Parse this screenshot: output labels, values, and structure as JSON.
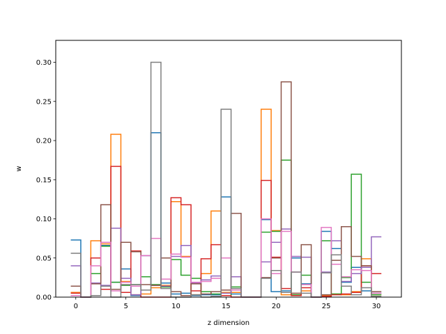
{
  "chart_data": {
    "type": "histogram-step",
    "title": "",
    "xlabel": "z dimension",
    "ylabel": "w",
    "xlim": [
      -2,
      32.5
    ],
    "ylim": [
      0,
      0.328
    ],
    "bin_start": -0.5,
    "bin_width": 1,
    "xticks": [
      0,
      5,
      10,
      15,
      20,
      25,
      30
    ],
    "xtick_labels": [
      "0",
      "5",
      "10",
      "15",
      "20",
      "25",
      "30"
    ],
    "yticks": [
      0.0,
      0.05,
      0.1,
      0.15,
      0.2,
      0.25,
      0.3
    ],
    "ytick_labels": [
      "0.00",
      "0.05",
      "0.10",
      "0.15",
      "0.20",
      "0.25",
      "0.30"
    ],
    "series": [
      {
        "color": "#1f77b4",
        "values": [
          0.073,
          0.0,
          0.05,
          0.066,
          0.019,
          0.036,
          0.002,
          0.053,
          0.21,
          0.018,
          0.004,
          0.005,
          0.002,
          0.003,
          0.003,
          0.128,
          0.004,
          0,
          0,
          0.099,
          0.007,
          0.008,
          0.05,
          0.017,
          0,
          0.084,
          0.062,
          0.019,
          0.038,
          0.008,
          0.005
        ]
      },
      {
        "color": "#ff7f0e",
        "values": [
          0.006,
          0.0,
          0.072,
          0.068,
          0.208,
          0.02,
          0.003,
          0.004,
          0.012,
          0.015,
          0.122,
          0.052,
          0.003,
          0.03,
          0.11,
          0.006,
          0.006,
          0,
          0,
          0.24,
          0.085,
          0.003,
          0.003,
          0.008,
          0,
          0.002,
          0.004,
          0.003,
          0.007,
          0.049,
          0.003
        ]
      },
      {
        "color": "#2ca02c",
        "values": [
          0.002,
          0.0,
          0.03,
          0.065,
          0.019,
          0.015,
          0.016,
          0.026,
          0.016,
          0.013,
          0.048,
          0.028,
          0.024,
          0.007,
          0.004,
          0.002,
          0.013,
          0,
          0,
          0.083,
          0.084,
          0.175,
          0.003,
          0.028,
          0,
          0.072,
          0.004,
          0.025,
          0.157,
          0.019,
          0.003
        ]
      },
      {
        "color": "#d62728",
        "values": [
          0.005,
          0.0,
          0.05,
          0.01,
          0.167,
          0.006,
          0.059,
          0.0,
          0.0,
          0.0,
          0.127,
          0.118,
          0.008,
          0.049,
          0.067,
          0.002,
          0.0,
          0,
          0,
          0.149,
          0.051,
          0.011,
          0.002,
          0.012,
          0,
          0.001,
          0.003,
          0.004,
          0.006,
          0.04,
          0.03
        ]
      },
      {
        "color": "#9467bd",
        "values": [
          0.04,
          0.0,
          0.018,
          0.015,
          0.088,
          0.024,
          0.003,
          0.053,
          0.015,
          0.014,
          0.052,
          0.066,
          0.018,
          0.022,
          0.027,
          0.005,
          0.026,
          0,
          0,
          0.045,
          0.07,
          0.087,
          0.052,
          0.051,
          0,
          0.032,
          0.072,
          0.02,
          0.03,
          0.038,
          0.077
        ]
      },
      {
        "color": "#8c564b",
        "values": [
          0.014,
          0.0,
          0.017,
          0.118,
          0.01,
          0.07,
          0.058,
          0.016,
          0.015,
          0.05,
          0.007,
          0.002,
          0.017,
          0.004,
          0.007,
          0.009,
          0.107,
          0,
          0,
          0.025,
          0.05,
          0.275,
          0.005,
          0.067,
          0,
          0.003,
          0.047,
          0.09,
          0.052,
          0.04,
          0.007
        ]
      },
      {
        "color": "#e377c2",
        "values": [
          0.002,
          0.0,
          0.04,
          0.07,
          0.008,
          0.019,
          0.014,
          0.053,
          0.075,
          0.023,
          0.055,
          0.051,
          0.019,
          0.02,
          0.024,
          0.05,
          0.009,
          0,
          0,
          0.1,
          0.03,
          0.084,
          0.032,
          0.016,
          0,
          0.089,
          0.042,
          0.026,
          0.035,
          0.034,
          0.005
        ]
      },
      {
        "color": "#7f7f7f",
        "values": [
          0.056,
          0.0,
          0.002,
          0.014,
          0.0,
          0.016,
          0.016,
          0.009,
          0.3,
          0.011,
          0.0,
          0.0,
          0.003,
          0.0,
          0.001,
          0.24,
          0.011,
          0,
          0,
          0.024,
          0.034,
          0.006,
          0.032,
          0.005,
          0,
          0.031,
          0.054,
          0.014,
          0.003,
          0.012,
          0.001
        ]
      }
    ],
    "grid": false,
    "legend": "none"
  }
}
